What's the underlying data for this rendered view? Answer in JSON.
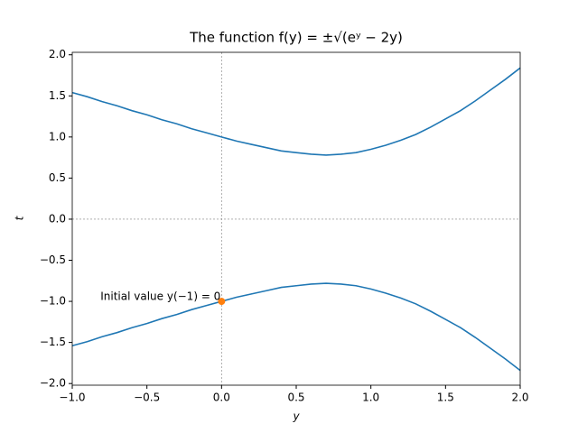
{
  "chart_data": {
    "type": "line",
    "title": "The function f(y) = ±√(eʸ − 2y)",
    "xlabel": "y",
    "ylabel": "t",
    "x": [
      -1.0,
      -0.9,
      -0.8,
      -0.7,
      -0.6,
      -0.5,
      -0.4,
      -0.3,
      -0.2,
      -0.1,
      0.0,
      0.1,
      0.2,
      0.3,
      0.4,
      0.5,
      0.6,
      0.7,
      0.8,
      0.9,
      1.0,
      1.1,
      1.2,
      1.3,
      1.4,
      1.5,
      1.6,
      1.7,
      1.8,
      1.9,
      2.0
    ],
    "series": [
      {
        "color": "#1f77b4",
        "values": [
          1.54,
          1.49,
          1.43,
          1.38,
          1.32,
          1.27,
          1.21,
          1.16,
          1.1,
          1.05,
          1.0,
          0.95,
          0.91,
          0.87,
          0.83,
          0.81,
          0.79,
          0.78,
          0.79,
          0.81,
          0.85,
          0.9,
          0.96,
          1.03,
          1.12,
          1.22,
          1.32,
          1.44,
          1.57,
          1.7,
          1.84
        ]
      },
      {
        "color": "#1f77b4",
        "values": [
          -1.54,
          -1.49,
          -1.43,
          -1.38,
          -1.32,
          -1.27,
          -1.21,
          -1.16,
          -1.1,
          -1.05,
          -1.0,
          -0.95,
          -0.91,
          -0.87,
          -0.83,
          -0.81,
          -0.79,
          -0.78,
          -0.79,
          -0.81,
          -0.85,
          -0.9,
          -0.96,
          -1.03,
          -1.12,
          -1.22,
          -1.32,
          -1.44,
          -1.57,
          -1.7,
          -1.84
        ]
      }
    ],
    "points": [
      {
        "x": 0,
        "y": -1,
        "color": "#ff7f0e",
        "label": "Initial value y(−1) = 0"
      }
    ],
    "reference_lines": {
      "x": 0,
      "y": 0,
      "color": "#808080"
    },
    "xlim": [
      -1,
      2
    ],
    "ylim": [
      -2.02,
      2.03
    ],
    "xticks": [
      {
        "value": -1,
        "label": "−1.0"
      },
      {
        "value": -0.5,
        "label": "−0.5"
      },
      {
        "value": 0,
        "label": "0.0"
      },
      {
        "value": 0.5,
        "label": "0.5"
      },
      {
        "value": 1,
        "label": "1.0"
      },
      {
        "value": 1.5,
        "label": "1.5"
      },
      {
        "value": 2,
        "label": "2.0"
      }
    ],
    "yticks": [
      {
        "value": -2,
        "label": "−2.0"
      },
      {
        "value": -1.5,
        "label": "−1.5"
      },
      {
        "value": -1,
        "label": "−1.0"
      },
      {
        "value": -0.5,
        "label": "−0.5"
      },
      {
        "value": 0,
        "label": "0.0"
      },
      {
        "value": 0.5,
        "label": "0.5"
      },
      {
        "value": 1,
        "label": "1.0"
      },
      {
        "value": 1.5,
        "label": "1.5"
      },
      {
        "value": 2,
        "label": "2.0"
      }
    ]
  }
}
